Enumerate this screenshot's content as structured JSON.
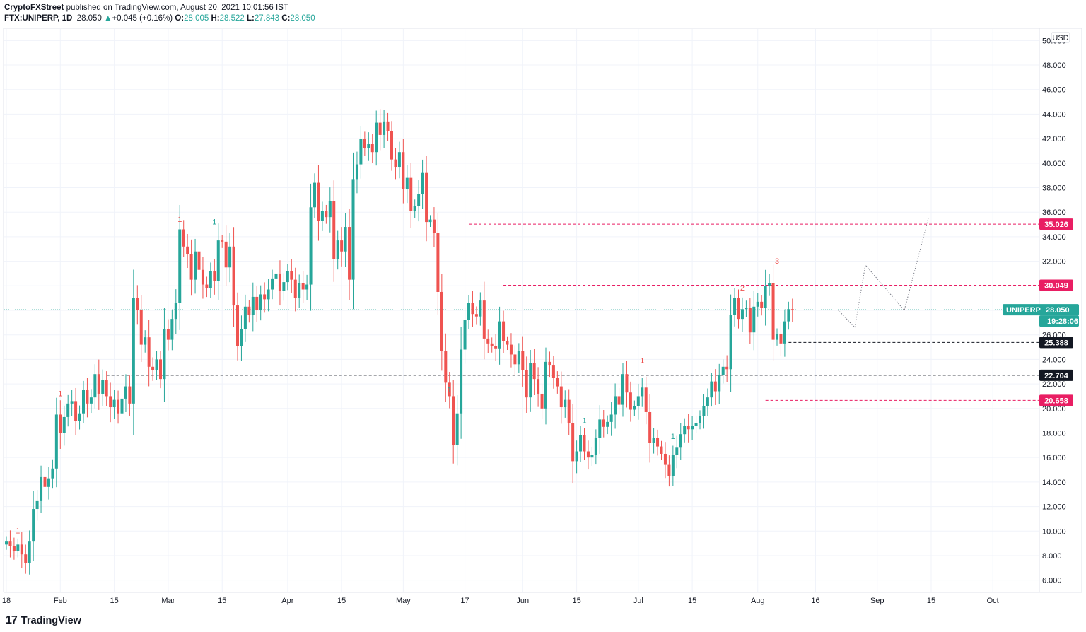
{
  "header": {
    "publisher": "CryptoFXStreet",
    "published_text": "published on TradingView.com, August 20, 2021 10:01:56 IST",
    "symbol": "FTX:UNIPERP, 1D",
    "last": "28.050",
    "change_arrow": "▲",
    "change": "+0.045 (+0.16%)",
    "o_label": "O:",
    "o": "28.005",
    "h_label": "H:",
    "h": "28.522",
    "l_label": "L:",
    "l": "27.843",
    "c_label": "C:",
    "c": "28.050"
  },
  "footer": {
    "brand": "TradingView",
    "logo": "17"
  },
  "colors": {
    "up": "#26a69a",
    "down": "#ef5350",
    "resistance": "#e91e63",
    "support": "#131722",
    "grid": "#f0f3fa"
  },
  "chart_data": {
    "type": "candlestick",
    "currency": "USD",
    "y_ticks": [
      6,
      8,
      10,
      12,
      14,
      16,
      18,
      20,
      22,
      24,
      26,
      28,
      30,
      32,
      34,
      36,
      38,
      40,
      42,
      44,
      46,
      48,
      50
    ],
    "y_tick_labels": [
      "6.000",
      "8.000",
      "10.000",
      "12.000",
      "14.000",
      "16.000",
      "18.000",
      "20.000",
      "22.000",
      "24.000",
      "26.000",
      "28.000",
      "30.000",
      "32.000",
      "34.000",
      "36.000",
      "38.000",
      "40.000",
      "42.000",
      "44.000",
      "46.000",
      "48.000",
      "50.000"
    ],
    "ylim": [
      5.0,
      51.0
    ],
    "x_ticks": [
      {
        "label": "18",
        "day": 0
      },
      {
        "label": "Feb",
        "day": 14
      },
      {
        "label": "15",
        "day": 28
      },
      {
        "label": "Mar",
        "day": 42
      },
      {
        "label": "15",
        "day": 56
      },
      {
        "label": "Apr",
        "day": 73
      },
      {
        "label": "15",
        "day": 87
      },
      {
        "label": "May",
        "day": 103
      },
      {
        "label": "17",
        "day": 119
      },
      {
        "label": "Jun",
        "day": 134
      },
      {
        "label": "15",
        "day": 148
      },
      {
        "label": "Jul",
        "day": 164
      },
      {
        "label": "15",
        "day": 178
      },
      {
        "label": "Aug",
        "day": 195
      },
      {
        "label": "16",
        "day": 210
      },
      {
        "label": "Sep",
        "day": 226
      },
      {
        "label": "15",
        "day": 240
      },
      {
        "label": "Oct",
        "day": 256
      }
    ],
    "closes": [
      9.2,
      8.8,
      8.4,
      8.9,
      8.1,
      7.4,
      9.2,
      11.8,
      12.5,
      14.4,
      13.6,
      14.3,
      15.1,
      19.5,
      18.0,
      19.3,
      20.4,
      20.6,
      19.0,
      19.6,
      21.5,
      20.4,
      20.9,
      22.8,
      21.2,
      22.3,
      21.0,
      20.1,
      20.7,
      19.6,
      20.8,
      21.8,
      20.4,
      29.0,
      28.0,
      25.2,
      25.8,
      23.4,
      23.1,
      24.0,
      22.4,
      26.5,
      25.6,
      27.3,
      28.6,
      34.6,
      33.2,
      32.6,
      30.5,
      32.8,
      31.3,
      30.1,
      29.8,
      31.2,
      30.4,
      33.7,
      33.6,
      31.5,
      33.2,
      28.4,
      25.1,
      26.5,
      28.3,
      27.6,
      29.1,
      28.0,
      29.3,
      28.9,
      29.7,
      30.6,
      31.0,
      29.6,
      30.3,
      31.2,
      30.5,
      29.0,
      30.2,
      29.7,
      30.1,
      36.4,
      38.4,
      35.3,
      36.1,
      35.6,
      36.9,
      32.2,
      33.7,
      32.8,
      34.8,
      30.5,
      38.7,
      39.9,
      42.0,
      41.2,
      41.6,
      40.9,
      43.3,
      42.3,
      43.4,
      42.6,
      40.3,
      39.7,
      40.9,
      37.9,
      38.8,
      36.1,
      36.5,
      37.5,
      39.2,
      35.2,
      35.4,
      34.3,
      29.5,
      24.7,
      22.1,
      21.0,
      17.0,
      19.6,
      24.8,
      27.2,
      28.6,
      27.7,
      27.5,
      28.8,
      25.7,
      25.3,
      25.1,
      24.9,
      27.1,
      25.5,
      25.2,
      24.4,
      23.6,
      24.7,
      23.1,
      20.9,
      23.7,
      22.4,
      21.2,
      20.0,
      23.8,
      23.5,
      22.5,
      21.8,
      20.1,
      20.7,
      18.8,
      15.7,
      16.5,
      17.8,
      16.5,
      16.0,
      16.2,
      17.6,
      19.1,
      18.5,
      18.9,
      19.5,
      21.0,
      20.3,
      22.8,
      21.3,
      19.9,
      20.2,
      21.0,
      21.7,
      19.7,
      17.2,
      17.6,
      16.9,
      16.3,
      15.4,
      14.5,
      16.2,
      16.8,
      17.9,
      18.6,
      18.3,
      18.6,
      18.8,
      19.4,
      20.2,
      20.9,
      22.2,
      21.4,
      22.7,
      23.4,
      23.2,
      27.6,
      29.0,
      27.3,
      28.1,
      28.2,
      26.2,
      28.3,
      28.7,
      28.2,
      30.0,
      30.2,
      25.6,
      26.1,
      25.3,
      27.1,
      28.1,
      28.0
    ],
    "resistance_levels": [
      35.026,
      30.049,
      20.658
    ],
    "resistance_labels": [
      "35.026",
      "30.049",
      "20.658"
    ],
    "support_levels": [
      25.388,
      22.704
    ],
    "support_labels": [
      "25.388",
      "22.704"
    ],
    "projection_path": [
      [
        28.0,
        26.6
      ],
      [
        30.3,
        31.7
      ],
      [
        33.4,
        28.0
      ],
      [
        37.1,
        35.5
      ]
    ],
    "current_label": "UNIPERP",
    "current_price": "28.050",
    "countdown": "19:28:06",
    "td_counts": [
      {
        "text": "1",
        "day": 3,
        "v": 9.8,
        "color": "down"
      },
      {
        "text": "1",
        "day": 14,
        "v": 21.0,
        "color": "down"
      },
      {
        "text": "1",
        "day": 45,
        "v": 35.2,
        "color": "down"
      },
      {
        "text": "1",
        "day": 54,
        "v": 35.0,
        "color": "up"
      },
      {
        "text": "1",
        "day": 115,
        "v": 21.3,
        "color": "up"
      },
      {
        "text": "1",
        "day": 150,
        "v": 18.8,
        "color": "up"
      },
      {
        "text": "1",
        "day": 165,
        "v": 23.7,
        "color": "down"
      },
      {
        "text": "1",
        "day": 173,
        "v": 17.5,
        "color": "up"
      },
      {
        "text": "2",
        "day": 191,
        "v": 29.6,
        "color": "down"
      },
      {
        "text": "3",
        "day": 200,
        "v": 31.8,
        "color": "down"
      }
    ]
  }
}
